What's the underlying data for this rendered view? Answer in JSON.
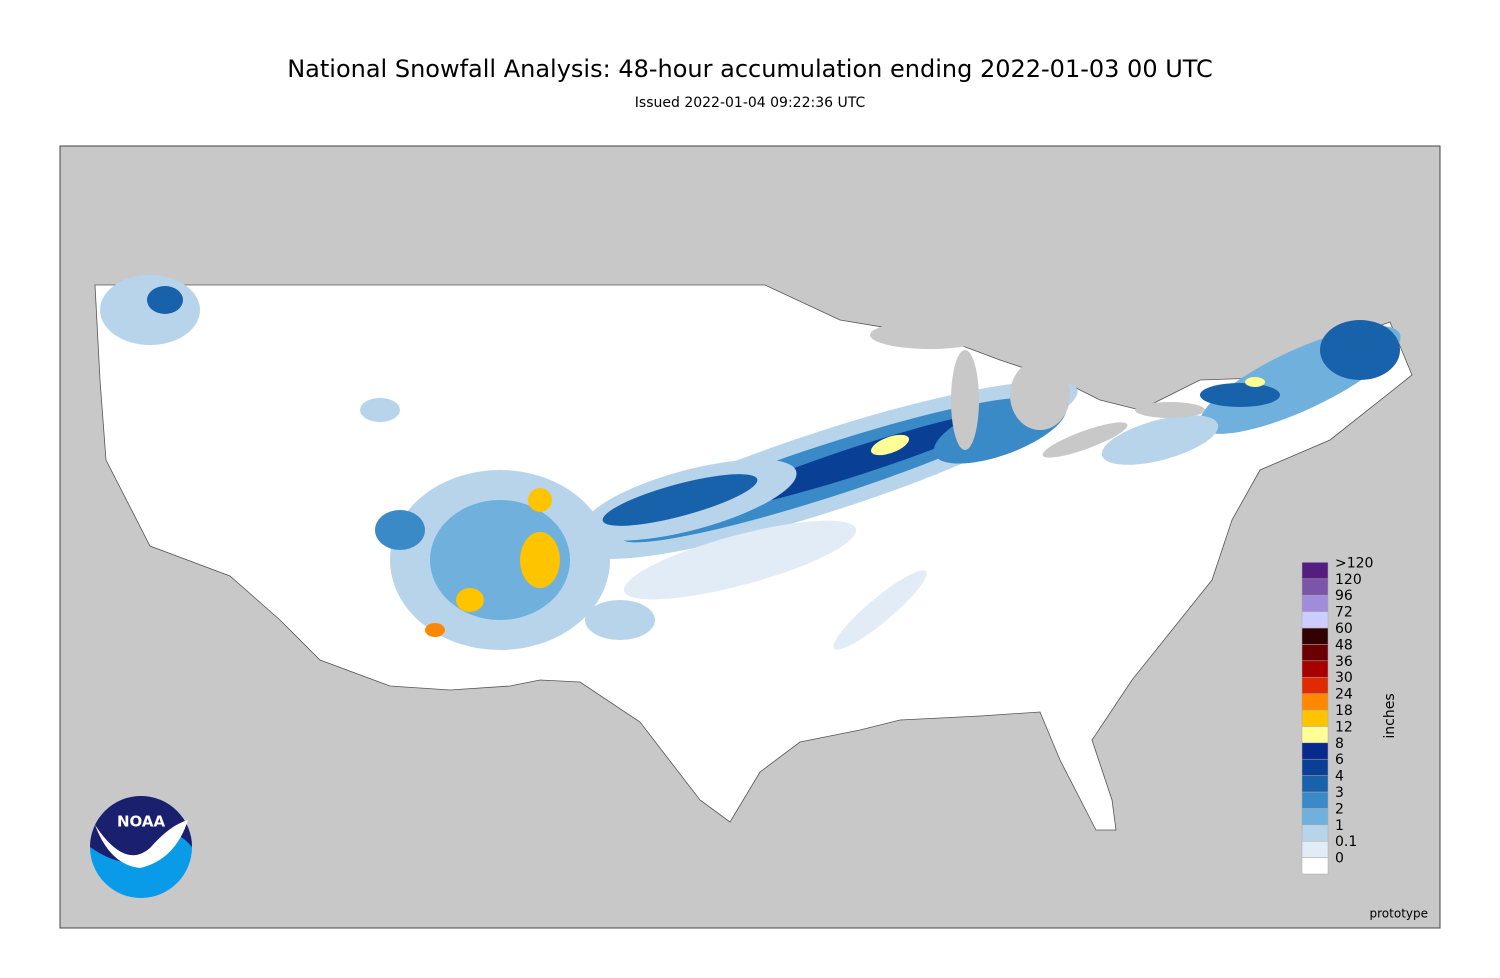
{
  "header": {
    "title": "National Snowfall Analysis: 48-hour accumulation ending 2022-01-03 00 UTC",
    "subtitle": "Issued 2022-01-04 09:22:36 UTC"
  },
  "legend": {
    "unit": "inches",
    "items": [
      {
        "label": "0",
        "color": "#ffffff"
      },
      {
        "label": "0.1",
        "color": "#e1ecf7"
      },
      {
        "label": "1",
        "color": "#b8d4ea"
      },
      {
        "label": "2",
        "color": "#6fb0dd"
      },
      {
        "label": "3",
        "color": "#3a8ac8"
      },
      {
        "label": "4",
        "color": "#1861ab"
      },
      {
        "label": "6",
        "color": "#0a3f96"
      },
      {
        "label": "8",
        "color": "#082a8c"
      },
      {
        "label": "12",
        "color": "#ffff96"
      },
      {
        "label": "18",
        "color": "#ffc400"
      },
      {
        "label": "24",
        "color": "#ff8800"
      },
      {
        "label": "30",
        "color": "#e02a00"
      },
      {
        "label": "36",
        "color": "#a60000"
      },
      {
        "label": "48",
        "color": "#6b0000"
      },
      {
        "label": "60",
        "color": "#330000"
      },
      {
        "label": "72",
        "color": "#ccccff"
      },
      {
        "label": "96",
        "color": "#a08cd8"
      },
      {
        "label": "120",
        "color": "#7d55a8"
      },
      {
        "label": ">120",
        "color": "#531e80"
      }
    ]
  },
  "footer": {
    "note": "prototype"
  },
  "logo": {
    "text": "NOAA"
  }
}
